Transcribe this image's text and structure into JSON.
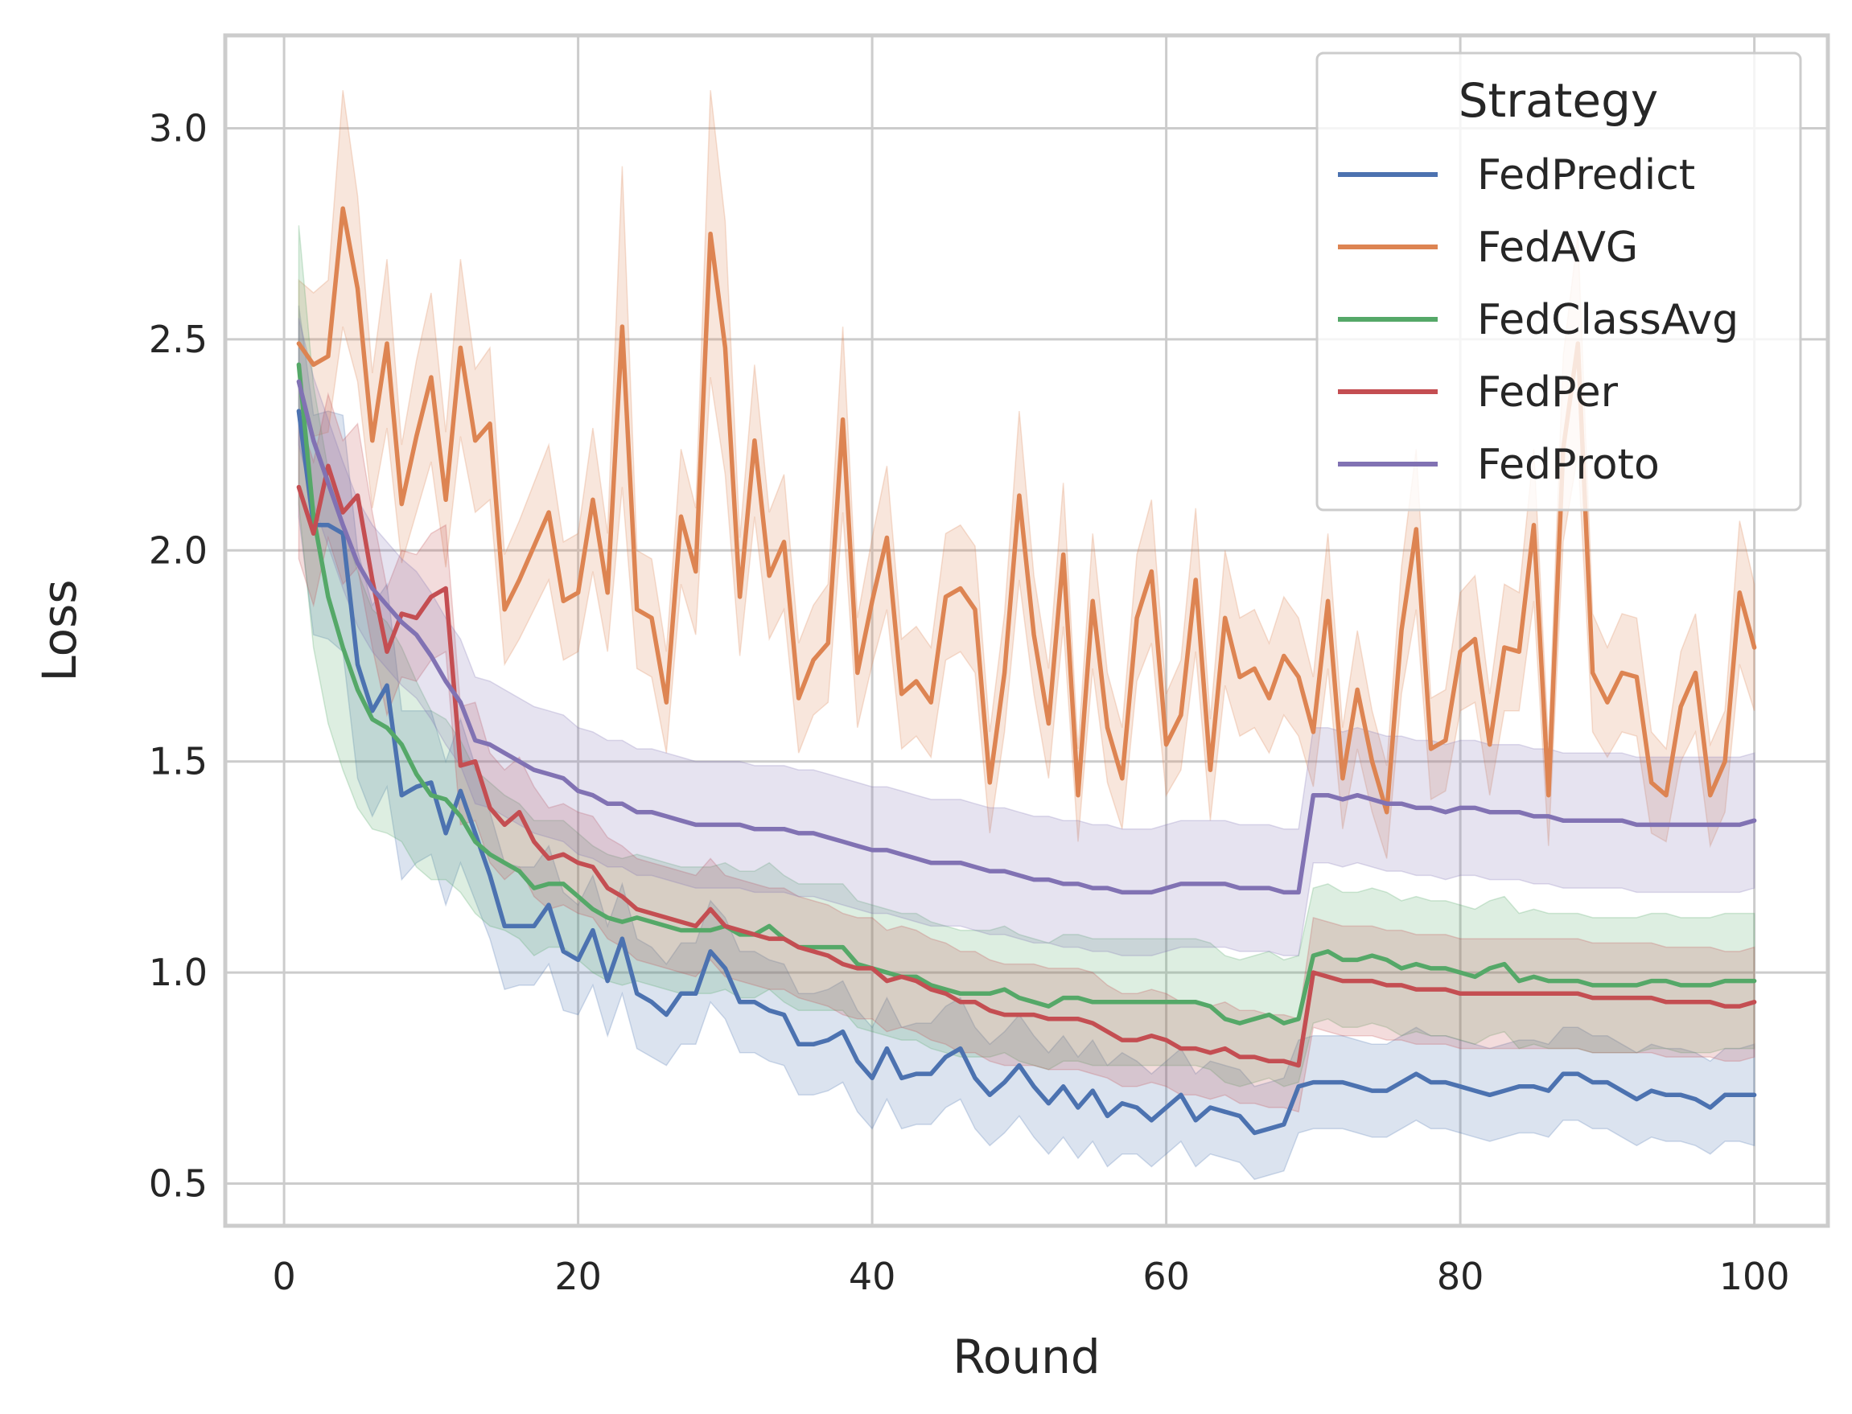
{
  "chart_data": {
    "type": "line",
    "xlabel": "Round",
    "ylabel": "Loss",
    "xlim": [
      -4,
      105
    ],
    "ylim": [
      0.4,
      3.22
    ],
    "xticks": [
      0,
      20,
      40,
      60,
      80,
      100
    ],
    "yticks": [
      0.5,
      1.0,
      1.5,
      2.0,
      2.5,
      3.0
    ],
    "xtick_labels": [
      "0",
      "20",
      "40",
      "60",
      "80",
      "100"
    ],
    "ytick_labels": [
      "0.5",
      "1.0",
      "1.5",
      "2.0",
      "2.5",
      "3.0"
    ],
    "grid": true,
    "legend": {
      "title": "Strategy",
      "position": "top-right"
    },
    "x": [
      1,
      2,
      3,
      4,
      5,
      6,
      7,
      8,
      9,
      10,
      11,
      12,
      13,
      14,
      15,
      16,
      17,
      18,
      19,
      20,
      21,
      22,
      23,
      24,
      25,
      26,
      27,
      28,
      29,
      30,
      31,
      32,
      33,
      34,
      35,
      36,
      37,
      38,
      39,
      40,
      41,
      42,
      43,
      44,
      45,
      46,
      47,
      48,
      49,
      50,
      51,
      52,
      53,
      54,
      55,
      56,
      57,
      58,
      59,
      60,
      61,
      62,
      63,
      64,
      65,
      66,
      67,
      68,
      69,
      70,
      71,
      72,
      73,
      74,
      75,
      76,
      77,
      78,
      79,
      80,
      81,
      82,
      83,
      84,
      85,
      86,
      87,
      88,
      89,
      90,
      91,
      92,
      93,
      94,
      95,
      96,
      97,
      98,
      99,
      100
    ],
    "series": [
      {
        "name": "FedPredict",
        "color": "#4c72b0",
        "values": [
          2.33,
          2.06,
          2.06,
          2.04,
          1.73,
          1.62,
          1.68,
          1.42,
          1.44,
          1.45,
          1.33,
          1.43,
          1.33,
          1.23,
          1.11,
          1.11,
          1.11,
          1.16,
          1.05,
          1.03,
          1.1,
          0.98,
          1.08,
          0.95,
          0.93,
          0.9,
          0.95,
          0.95,
          1.05,
          1.01,
          0.93,
          0.93,
          0.91,
          0.9,
          0.83,
          0.83,
          0.84,
          0.86,
          0.79,
          0.75,
          0.82,
          0.75,
          0.76,
          0.76,
          0.8,
          0.82,
          0.75,
          0.71,
          0.74,
          0.78,
          0.73,
          0.69,
          0.73,
          0.68,
          0.72,
          0.66,
          0.69,
          0.68,
          0.65,
          0.68,
          0.71,
          0.65,
          0.68,
          0.67,
          0.66,
          0.62,
          0.63,
          0.64,
          0.73,
          0.74,
          0.74,
          0.74,
          0.73,
          0.72,
          0.72,
          0.74,
          0.76,
          0.74,
          0.74,
          0.73,
          0.72,
          0.71,
          0.72,
          0.73,
          0.73,
          0.72,
          0.76,
          0.76,
          0.74,
          0.74,
          0.72,
          0.7,
          0.72,
          0.71,
          0.71,
          0.7,
          0.68,
          0.71,
          0.71,
          0.71
        ],
        "ci_half_width": [
          0.25,
          0.26,
          0.27,
          0.28,
          0.27,
          0.25,
          0.24,
          0.2,
          0.18,
          0.17,
          0.17,
          0.17,
          0.16,
          0.15,
          0.15,
          0.14,
          0.14,
          0.14,
          0.14,
          0.13,
          0.13,
          0.13,
          0.13,
          0.13,
          0.13,
          0.12,
          0.12,
          0.12,
          0.12,
          0.12,
          0.12,
          0.12,
          0.12,
          0.12,
          0.12,
          0.12,
          0.12,
          0.12,
          0.12,
          0.12,
          0.12,
          0.12,
          0.12,
          0.12,
          0.12,
          0.12,
          0.12,
          0.12,
          0.12,
          0.12,
          0.12,
          0.12,
          0.12,
          0.12,
          0.12,
          0.12,
          0.12,
          0.11,
          0.11,
          0.11,
          0.11,
          0.11,
          0.11,
          0.11,
          0.11,
          0.11,
          0.11,
          0.11,
          0.11,
          0.11,
          0.11,
          0.11,
          0.11,
          0.11,
          0.11,
          0.11,
          0.11,
          0.11,
          0.11,
          0.11,
          0.11,
          0.11,
          0.11,
          0.11,
          0.11,
          0.11,
          0.11,
          0.11,
          0.11,
          0.11,
          0.11,
          0.11,
          0.11,
          0.11,
          0.11,
          0.11,
          0.11,
          0.11,
          0.11,
          0.12
        ]
      },
      {
        "name": "FedAVG",
        "color": "#dd8452",
        "values": [
          2.49,
          2.44,
          2.46,
          2.81,
          2.62,
          2.26,
          2.49,
          2.11,
          2.27,
          2.41,
          2.12,
          2.48,
          2.26,
          2.3,
          1.86,
          1.93,
          2.01,
          2.09,
          1.88,
          1.9,
          2.12,
          1.9,
          2.53,
          1.86,
          1.84,
          1.64,
          2.08,
          1.95,
          2.75,
          2.48,
          1.89,
          2.26,
          1.94,
          2.02,
          1.65,
          1.74,
          1.78,
          2.31,
          1.71,
          1.88,
          2.03,
          1.66,
          1.69,
          1.64,
          1.89,
          1.91,
          1.86,
          1.45,
          1.71,
          2.13,
          1.8,
          1.59,
          1.99,
          1.42,
          1.88,
          1.58,
          1.46,
          1.84,
          1.95,
          1.54,
          1.61,
          1.93,
          1.48,
          1.84,
          1.7,
          1.72,
          1.65,
          1.75,
          1.7,
          1.57,
          1.88,
          1.46,
          1.67,
          1.5,
          1.38,
          1.81,
          2.05,
          1.53,
          1.55,
          1.76,
          1.79,
          1.54,
          1.77,
          1.76,
          2.06,
          1.42,
          2.24,
          2.49,
          1.71,
          1.64,
          1.71,
          1.7,
          1.45,
          1.42,
          1.63,
          1.71,
          1.42,
          1.5,
          1.9,
          1.77
        ],
        "ci_half_width": [
          0.15,
          0.17,
          0.18,
          0.28,
          0.22,
          0.16,
          0.2,
          0.14,
          0.18,
          0.2,
          0.16,
          0.21,
          0.17,
          0.18,
          0.13,
          0.14,
          0.15,
          0.16,
          0.14,
          0.14,
          0.17,
          0.14,
          0.38,
          0.14,
          0.14,
          0.12,
          0.16,
          0.15,
          0.34,
          0.3,
          0.14,
          0.18,
          0.15,
          0.16,
          0.13,
          0.13,
          0.14,
          0.22,
          0.13,
          0.15,
          0.17,
          0.13,
          0.13,
          0.13,
          0.15,
          0.15,
          0.15,
          0.12,
          0.14,
          0.2,
          0.14,
          0.13,
          0.17,
          0.11,
          0.16,
          0.13,
          0.12,
          0.15,
          0.17,
          0.12,
          0.13,
          0.17,
          0.12,
          0.16,
          0.14,
          0.14,
          0.13,
          0.14,
          0.14,
          0.13,
          0.16,
          0.12,
          0.14,
          0.12,
          0.11,
          0.15,
          0.19,
          0.12,
          0.12,
          0.14,
          0.15,
          0.12,
          0.15,
          0.14,
          0.18,
          0.12,
          0.22,
          0.26,
          0.14,
          0.13,
          0.14,
          0.14,
          0.12,
          0.11,
          0.13,
          0.14,
          0.12,
          0.12,
          0.17,
          0.15
        ]
      },
      {
        "name": "FedClassAvg",
        "color": "#55a868",
        "values": [
          2.44,
          2.08,
          1.89,
          1.77,
          1.67,
          1.6,
          1.58,
          1.54,
          1.47,
          1.42,
          1.41,
          1.37,
          1.31,
          1.28,
          1.26,
          1.24,
          1.2,
          1.21,
          1.21,
          1.18,
          1.15,
          1.13,
          1.12,
          1.13,
          1.12,
          1.11,
          1.1,
          1.1,
          1.1,
          1.11,
          1.09,
          1.09,
          1.11,
          1.08,
          1.06,
          1.06,
          1.06,
          1.06,
          1.02,
          1.01,
          1.0,
          0.99,
          0.99,
          0.97,
          0.96,
          0.95,
          0.95,
          0.95,
          0.96,
          0.94,
          0.93,
          0.92,
          0.94,
          0.94,
          0.93,
          0.93,
          0.93,
          0.93,
          0.93,
          0.93,
          0.93,
          0.93,
          0.92,
          0.89,
          0.88,
          0.89,
          0.9,
          0.88,
          0.89,
          1.04,
          1.05,
          1.03,
          1.03,
          1.04,
          1.03,
          1.01,
          1.02,
          1.01,
          1.01,
          1.0,
          0.99,
          1.01,
          1.02,
          0.98,
          0.99,
          0.98,
          0.98,
          0.98,
          0.97,
          0.97,
          0.97,
          0.97,
          0.98,
          0.98,
          0.97,
          0.97,
          0.97,
          0.98,
          0.98,
          0.98
        ],
        "ci_half_width": [
          0.33,
          0.31,
          0.3,
          0.29,
          0.28,
          0.26,
          0.25,
          0.23,
          0.22,
          0.2,
          0.19,
          0.18,
          0.17,
          0.17,
          0.16,
          0.16,
          0.16,
          0.15,
          0.15,
          0.15,
          0.15,
          0.15,
          0.15,
          0.15,
          0.15,
          0.15,
          0.15,
          0.15,
          0.15,
          0.15,
          0.15,
          0.15,
          0.15,
          0.15,
          0.15,
          0.15,
          0.15,
          0.15,
          0.15,
          0.15,
          0.15,
          0.15,
          0.15,
          0.15,
          0.15,
          0.15,
          0.15,
          0.15,
          0.15,
          0.15,
          0.15,
          0.15,
          0.15,
          0.15,
          0.15,
          0.15,
          0.15,
          0.15,
          0.15,
          0.15,
          0.15,
          0.15,
          0.15,
          0.15,
          0.15,
          0.15,
          0.15,
          0.15,
          0.15,
          0.16,
          0.16,
          0.16,
          0.16,
          0.16,
          0.16,
          0.16,
          0.16,
          0.16,
          0.16,
          0.16,
          0.16,
          0.16,
          0.16,
          0.16,
          0.16,
          0.16,
          0.16,
          0.16,
          0.16,
          0.16,
          0.16,
          0.16,
          0.16,
          0.16,
          0.16,
          0.16,
          0.16,
          0.16,
          0.16,
          0.16
        ]
      },
      {
        "name": "FedPer",
        "color": "#c44e52",
        "values": [
          2.15,
          2.04,
          2.2,
          2.09,
          2.13,
          1.93,
          1.76,
          1.85,
          1.84,
          1.89,
          1.91,
          1.49,
          1.5,
          1.39,
          1.35,
          1.38,
          1.31,
          1.27,
          1.28,
          1.26,
          1.25,
          1.2,
          1.18,
          1.15,
          1.14,
          1.13,
          1.12,
          1.11,
          1.15,
          1.11,
          1.1,
          1.09,
          1.08,
          1.08,
          1.06,
          1.05,
          1.04,
          1.02,
          1.01,
          1.01,
          0.98,
          0.99,
          0.98,
          0.96,
          0.95,
          0.93,
          0.93,
          0.91,
          0.9,
          0.9,
          0.9,
          0.89,
          0.89,
          0.89,
          0.88,
          0.86,
          0.84,
          0.84,
          0.85,
          0.84,
          0.82,
          0.82,
          0.81,
          0.82,
          0.8,
          0.8,
          0.79,
          0.79,
          0.78,
          1.0,
          0.99,
          0.98,
          0.98,
          0.98,
          0.97,
          0.97,
          0.96,
          0.96,
          0.96,
          0.95,
          0.95,
          0.95,
          0.95,
          0.95,
          0.95,
          0.95,
          0.95,
          0.95,
          0.94,
          0.94,
          0.94,
          0.94,
          0.94,
          0.93,
          0.93,
          0.93,
          0.93,
          0.92,
          0.92,
          0.93
        ],
        "ci_half_width": [
          0.17,
          0.17,
          0.17,
          0.17,
          0.17,
          0.16,
          0.15,
          0.15,
          0.15,
          0.15,
          0.15,
          0.14,
          0.14,
          0.13,
          0.13,
          0.13,
          0.13,
          0.12,
          0.12,
          0.12,
          0.12,
          0.12,
          0.12,
          0.12,
          0.12,
          0.12,
          0.12,
          0.12,
          0.12,
          0.12,
          0.12,
          0.12,
          0.12,
          0.12,
          0.12,
          0.12,
          0.12,
          0.12,
          0.12,
          0.12,
          0.12,
          0.12,
          0.12,
          0.12,
          0.12,
          0.12,
          0.12,
          0.12,
          0.12,
          0.12,
          0.12,
          0.12,
          0.12,
          0.12,
          0.12,
          0.11,
          0.11,
          0.11,
          0.11,
          0.11,
          0.11,
          0.11,
          0.11,
          0.11,
          0.11,
          0.11,
          0.11,
          0.11,
          0.11,
          0.13,
          0.13,
          0.13,
          0.13,
          0.13,
          0.13,
          0.13,
          0.13,
          0.13,
          0.13,
          0.13,
          0.13,
          0.13,
          0.13,
          0.13,
          0.13,
          0.13,
          0.13,
          0.13,
          0.13,
          0.13,
          0.13,
          0.13,
          0.13,
          0.13,
          0.13,
          0.13,
          0.13,
          0.13,
          0.13,
          0.13
        ]
      },
      {
        "name": "FedProto",
        "color": "#8172b3",
        "values": [
          2.4,
          2.26,
          2.16,
          2.06,
          1.97,
          1.91,
          1.87,
          1.83,
          1.8,
          1.75,
          1.69,
          1.64,
          1.55,
          1.54,
          1.52,
          1.5,
          1.48,
          1.47,
          1.46,
          1.43,
          1.42,
          1.4,
          1.4,
          1.38,
          1.38,
          1.37,
          1.36,
          1.35,
          1.35,
          1.35,
          1.35,
          1.34,
          1.34,
          1.34,
          1.33,
          1.33,
          1.32,
          1.31,
          1.3,
          1.29,
          1.29,
          1.28,
          1.27,
          1.26,
          1.26,
          1.26,
          1.25,
          1.24,
          1.24,
          1.23,
          1.22,
          1.22,
          1.21,
          1.21,
          1.2,
          1.2,
          1.19,
          1.19,
          1.19,
          1.2,
          1.21,
          1.21,
          1.21,
          1.21,
          1.2,
          1.2,
          1.2,
          1.19,
          1.19,
          1.42,
          1.42,
          1.41,
          1.42,
          1.41,
          1.4,
          1.4,
          1.39,
          1.39,
          1.38,
          1.39,
          1.39,
          1.38,
          1.38,
          1.38,
          1.37,
          1.37,
          1.36,
          1.36,
          1.36,
          1.36,
          1.36,
          1.35,
          1.35,
          1.35,
          1.35,
          1.35,
          1.35,
          1.35,
          1.35,
          1.36
        ],
        "ci_half_width": [
          0.15,
          0.15,
          0.15,
          0.15,
          0.15,
          0.15,
          0.15,
          0.15,
          0.15,
          0.15,
          0.15,
          0.15,
          0.15,
          0.15,
          0.15,
          0.15,
          0.15,
          0.15,
          0.15,
          0.15,
          0.15,
          0.15,
          0.15,
          0.15,
          0.15,
          0.15,
          0.15,
          0.15,
          0.15,
          0.15,
          0.15,
          0.15,
          0.15,
          0.15,
          0.15,
          0.15,
          0.15,
          0.15,
          0.15,
          0.15,
          0.15,
          0.15,
          0.15,
          0.15,
          0.15,
          0.15,
          0.15,
          0.15,
          0.15,
          0.15,
          0.15,
          0.15,
          0.15,
          0.15,
          0.15,
          0.15,
          0.15,
          0.15,
          0.15,
          0.15,
          0.15,
          0.15,
          0.15,
          0.15,
          0.15,
          0.15,
          0.15,
          0.15,
          0.15,
          0.16,
          0.16,
          0.16,
          0.16,
          0.16,
          0.16,
          0.16,
          0.16,
          0.16,
          0.16,
          0.16,
          0.16,
          0.16,
          0.16,
          0.16,
          0.16,
          0.16,
          0.16,
          0.16,
          0.16,
          0.16,
          0.16,
          0.16,
          0.16,
          0.16,
          0.16,
          0.16,
          0.16,
          0.16,
          0.16,
          0.16
        ]
      }
    ]
  }
}
